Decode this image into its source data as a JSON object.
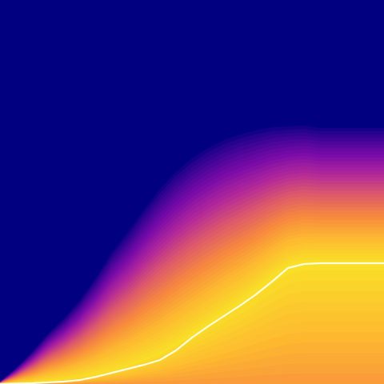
{
  "chart_data": {
    "type": "area",
    "title": "",
    "xlabel": "",
    "ylabel": "",
    "grid": false,
    "legend": "none",
    "xlim": [
      0,
      48
    ],
    "ylim": [
      0,
      48
    ],
    "colors": {
      "background": "#000080",
      "median_line": "#fffde0",
      "gradient_stops": [
        "#000080",
        "#3b0494",
        "#7a0ba8",
        "#b2289a",
        "#dd5a6a",
        "#f7893f",
        "#fdb930",
        "#f9df28"
      ]
    },
    "band": {
      "x": [
        0,
        2,
        4,
        6,
        8,
        10,
        12,
        14,
        16,
        18,
        20,
        22,
        24,
        26,
        28,
        30,
        32,
        34,
        36,
        38,
        40,
        42,
        44,
        46,
        48
      ],
      "upper": [
        0.3,
        2.0,
        4.0,
        6.3,
        8.2,
        10.5,
        13.3,
        16.5,
        19.0,
        21.8,
        24.4,
        26.5,
        28.2,
        29.5,
        30.5,
        31.2,
        31.7,
        32.1,
        32.2,
        32.3,
        32.0,
        32.0,
        32.0,
        32.0,
        32.0
      ],
      "peak": [
        0.0,
        0.1,
        0.2,
        0.4,
        0.6,
        0.9,
        1.3,
        1.8,
        2.4,
        3.2,
        4.0,
        5.2,
        6.5,
        7.8,
        9.2,
        10.5,
        12.0,
        13.6,
        15.0,
        15.5,
        15.5,
        15.5,
        15.5,
        15.5,
        15.5
      ],
      "lower": [
        0.0,
        0.0,
        0.0,
        0.0,
        0.0,
        0.0,
        0.0,
        0.0,
        0.0,
        0.0,
        0.0,
        0.0,
        0.0,
        0.0,
        0.0,
        0.0,
        0.0,
        0.0,
        0.0,
        0.0,
        0.0,
        0.0,
        0.0,
        0.0,
        0.0
      ]
    },
    "series": [
      {
        "values": [
          [
            0,
            0.0
          ],
          [
            4,
            0.1
          ],
          [
            8,
            0.3
          ],
          [
            10,
            0.5
          ],
          [
            12,
            0.9
          ],
          [
            14,
            1.4
          ],
          [
            16,
            1.9
          ],
          [
            18,
            2.4
          ],
          [
            20,
            3.0
          ],
          [
            22,
            4.2
          ],
          [
            24,
            5.8
          ],
          [
            26,
            7.2
          ],
          [
            28,
            8.5
          ],
          [
            30,
            9.8
          ],
          [
            32,
            11.2
          ],
          [
            34,
            12.8
          ],
          [
            36,
            14.5
          ],
          [
            38,
            15.0
          ],
          [
            40,
            15.1
          ],
          [
            42,
            15.1
          ],
          [
            44,
            15.1
          ],
          [
            46,
            15.1
          ],
          [
            48,
            15.1
          ]
        ]
      }
    ]
  }
}
